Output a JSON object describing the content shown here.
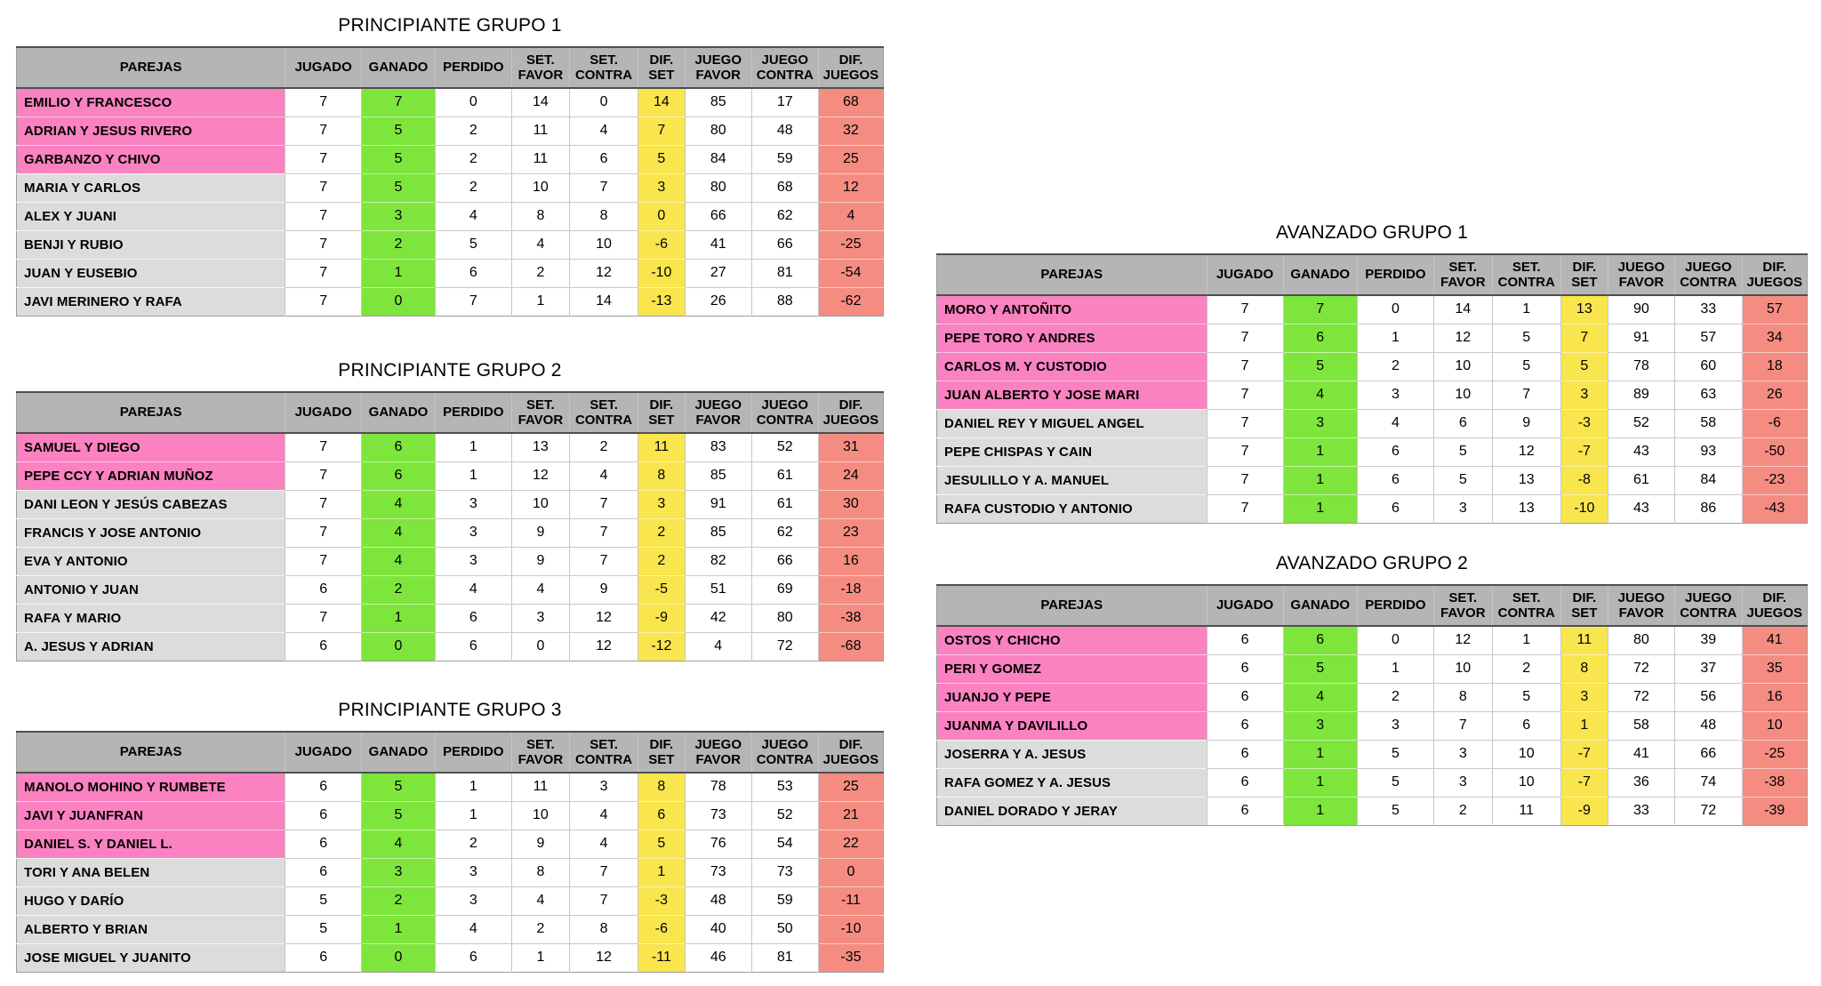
{
  "colors": {
    "header_bg": "#b5b5b5",
    "gray_row_bg": "#dcdcdc",
    "pink_row_bg": "#fa82c0",
    "ganado_col_bg": "#7ee53d",
    "dif_set_col_bg": "#f9e54d",
    "dif_juegos_col_bg": "#f58c82",
    "grid_line": "#c6c6c6",
    "header_divider": "#4f4f4f",
    "outer_border": "#9b9b9b"
  },
  "columns": [
    "PAREJAS",
    "JUGADO",
    "GANADO",
    "PERDIDO",
    "SET.\nFAVOR",
    "SET.\nCONTRA",
    "DIF.\nSET",
    "JUEGO\nFAVOR",
    "JUEGO\nCONTRA",
    "DIF.\nJUEGOS"
  ],
  "tables": [
    {
      "title": "PRINCIPIANTE GRUPO 1",
      "rows": [
        {
          "parejas": "EMILIO Y FRANCESCO",
          "highlight": true,
          "values": [
            7,
            7,
            0,
            14,
            0,
            14,
            85,
            17,
            68
          ]
        },
        {
          "parejas": "ADRIAN Y JESUS RIVERO",
          "highlight": true,
          "values": [
            7,
            5,
            2,
            11,
            4,
            7,
            80,
            48,
            32
          ]
        },
        {
          "parejas": "GARBANZO Y CHIVO",
          "highlight": true,
          "values": [
            7,
            5,
            2,
            11,
            6,
            5,
            84,
            59,
            25
          ]
        },
        {
          "parejas": "MARIA Y CARLOS",
          "highlight": false,
          "values": [
            7,
            5,
            2,
            10,
            7,
            3,
            80,
            68,
            12
          ]
        },
        {
          "parejas": "ALEX Y JUANI",
          "highlight": false,
          "values": [
            7,
            3,
            4,
            8,
            8,
            0,
            66,
            62,
            4
          ]
        },
        {
          "parejas": "BENJI Y RUBIO",
          "highlight": false,
          "values": [
            7,
            2,
            5,
            4,
            10,
            -6,
            41,
            66,
            -25
          ]
        },
        {
          "parejas": "JUAN Y EUSEBIO",
          "highlight": false,
          "values": [
            7,
            1,
            6,
            2,
            12,
            -10,
            27,
            81,
            -54
          ]
        },
        {
          "parejas": "JAVI MERINERO Y RAFA",
          "highlight": false,
          "values": [
            7,
            0,
            7,
            1,
            14,
            -13,
            26,
            88,
            -62
          ]
        }
      ]
    },
    {
      "title": "PRINCIPIANTE GRUPO 2",
      "rows": [
        {
          "parejas": "SAMUEL Y DIEGO",
          "highlight": true,
          "values": [
            7,
            6,
            1,
            13,
            2,
            11,
            83,
            52,
            31
          ]
        },
        {
          "parejas": "PEPE CCY Y ADRIAN MUÑOZ",
          "highlight": true,
          "values": [
            7,
            6,
            1,
            12,
            4,
            8,
            85,
            61,
            24
          ]
        },
        {
          "parejas": "DANI LEON Y JESÚS CABEZAS",
          "highlight": false,
          "values": [
            7,
            4,
            3,
            10,
            7,
            3,
            91,
            61,
            30
          ]
        },
        {
          "parejas": "FRANCIS Y JOSE ANTONIO",
          "highlight": false,
          "values": [
            7,
            4,
            3,
            9,
            7,
            2,
            85,
            62,
            23
          ]
        },
        {
          "parejas": "EVA Y ANTONIO",
          "highlight": false,
          "values": [
            7,
            4,
            3,
            9,
            7,
            2,
            82,
            66,
            16
          ]
        },
        {
          "parejas": "ANTONIO Y JUAN",
          "highlight": false,
          "values": [
            6,
            2,
            4,
            4,
            9,
            -5,
            51,
            69,
            -18
          ]
        },
        {
          "parejas": "RAFA Y MARIO",
          "highlight": false,
          "values": [
            7,
            1,
            6,
            3,
            12,
            -9,
            42,
            80,
            -38
          ]
        },
        {
          "parejas": "A. JESUS Y ADRIAN",
          "highlight": false,
          "values": [
            6,
            0,
            6,
            0,
            12,
            -12,
            4,
            72,
            -68
          ]
        }
      ]
    },
    {
      "title": "PRINCIPIANTE GRUPO 3",
      "rows": [
        {
          "parejas": "MANOLO MOHINO Y RUMBETE",
          "highlight": true,
          "values": [
            6,
            5,
            1,
            11,
            3,
            8,
            78,
            53,
            25
          ]
        },
        {
          "parejas": "JAVI Y JUANFRAN",
          "highlight": true,
          "values": [
            6,
            5,
            1,
            10,
            4,
            6,
            73,
            52,
            21
          ]
        },
        {
          "parejas": "DANIEL S. Y DANIEL L.",
          "highlight": true,
          "values": [
            6,
            4,
            2,
            9,
            4,
            5,
            76,
            54,
            22
          ]
        },
        {
          "parejas": "TORI Y ANA BELEN",
          "highlight": false,
          "values": [
            6,
            3,
            3,
            8,
            7,
            1,
            73,
            73,
            0
          ]
        },
        {
          "parejas": "HUGO Y DARÍO",
          "highlight": false,
          "values": [
            5,
            2,
            3,
            4,
            7,
            -3,
            48,
            59,
            -11
          ]
        },
        {
          "parejas": "ALBERTO Y BRIAN",
          "highlight": false,
          "values": [
            5,
            1,
            4,
            2,
            8,
            -6,
            40,
            50,
            -10
          ]
        },
        {
          "parejas": "JOSE MIGUEL Y JUANITO",
          "highlight": false,
          "values": [
            6,
            0,
            6,
            1,
            12,
            -11,
            46,
            81,
            -35
          ]
        }
      ]
    },
    {
      "title": "AVANZADO GRUPO 1",
      "rows": [
        {
          "parejas": "MORO Y ANTOÑITO",
          "highlight": true,
          "values": [
            7,
            7,
            0,
            14,
            1,
            13,
            90,
            33,
            57
          ]
        },
        {
          "parejas": "PEPE TORO Y ANDRES",
          "highlight": true,
          "values": [
            7,
            6,
            1,
            12,
            5,
            7,
            91,
            57,
            34
          ]
        },
        {
          "parejas": "CARLOS M. Y CUSTODIO",
          "highlight": true,
          "values": [
            7,
            5,
            2,
            10,
            5,
            5,
            78,
            60,
            18
          ]
        },
        {
          "parejas": "JUAN ALBERTO Y JOSE MARI",
          "highlight": true,
          "values": [
            7,
            4,
            3,
            10,
            7,
            3,
            89,
            63,
            26
          ]
        },
        {
          "parejas": "DANIEL REY Y MIGUEL ANGEL",
          "highlight": false,
          "values": [
            7,
            3,
            4,
            6,
            9,
            -3,
            52,
            58,
            -6
          ]
        },
        {
          "parejas": "PEPE CHISPAS Y CAIN",
          "highlight": false,
          "values": [
            7,
            1,
            6,
            5,
            12,
            -7,
            43,
            93,
            -50
          ]
        },
        {
          "parejas": "JESULILLO Y A. MANUEL",
          "highlight": false,
          "values": [
            7,
            1,
            6,
            5,
            13,
            -8,
            61,
            84,
            -23
          ]
        },
        {
          "parejas": "RAFA CUSTODIO Y ANTONIO",
          "highlight": false,
          "values": [
            7,
            1,
            6,
            3,
            13,
            -10,
            43,
            86,
            -43
          ]
        }
      ]
    },
    {
      "title": "AVANZADO GRUPO 2",
      "rows": [
        {
          "parejas": "OSTOS Y CHICHO",
          "highlight": true,
          "values": [
            6,
            6,
            0,
            12,
            1,
            11,
            80,
            39,
            41
          ]
        },
        {
          "parejas": "PERI Y GOMEZ",
          "highlight": true,
          "values": [
            6,
            5,
            1,
            10,
            2,
            8,
            72,
            37,
            35
          ]
        },
        {
          "parejas": "JUANJO Y PEPE",
          "highlight": true,
          "values": [
            6,
            4,
            2,
            8,
            5,
            3,
            72,
            56,
            16
          ]
        },
        {
          "parejas": "JUANMA Y DAVILILLO",
          "highlight": true,
          "values": [
            6,
            3,
            3,
            7,
            6,
            1,
            58,
            48,
            10
          ]
        },
        {
          "parejas": "JOSERRA Y A. JESUS",
          "highlight": false,
          "values": [
            6,
            1,
            5,
            3,
            10,
            -7,
            41,
            66,
            -25
          ]
        },
        {
          "parejas": "RAFA GOMEZ Y A. JESUS",
          "highlight": false,
          "values": [
            6,
            1,
            5,
            3,
            10,
            -7,
            36,
            74,
            -38
          ]
        },
        {
          "parejas": "DANIEL DORADO Y JERAY",
          "highlight": false,
          "values": [
            6,
            1,
            5,
            2,
            11,
            -9,
            33,
            72,
            -39
          ]
        }
      ]
    }
  ]
}
